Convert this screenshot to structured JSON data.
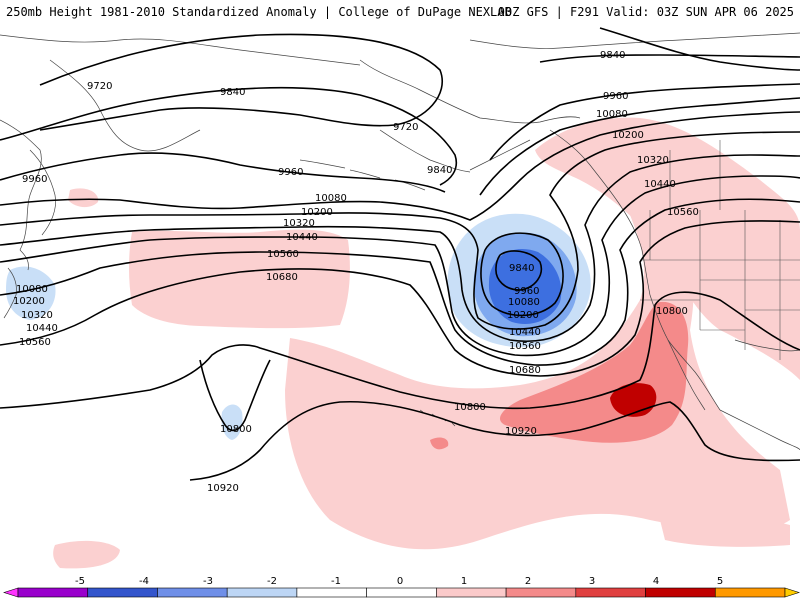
{
  "header": {
    "title_left": "250mb Height 1981-2010 Standardized Anomaly | College of DuPage NEXLAB",
    "title_right": "00Z GFS | F291 Valid: 03Z SUN APR 06 2025"
  },
  "contour_labels": [
    "9720",
    "9840",
    "9960",
    "10080",
    "10200",
    "10320",
    "10440",
    "10560",
    "10680",
    "10800",
    "10920"
  ],
  "placed_labels": [
    {
      "id": "lbl-9720-a",
      "text": "9720"
    },
    {
      "id": "lbl-9840-a",
      "text": "9840"
    },
    {
      "id": "lbl-9720-b",
      "text": "9720"
    },
    {
      "id": "lbl-9840-b",
      "text": "9840"
    },
    {
      "id": "lbl-9960-a",
      "text": "9960"
    },
    {
      "id": "lbl-9960-b",
      "text": "9960"
    },
    {
      "id": "lbl-10080-a",
      "text": "10080"
    },
    {
      "id": "lbl-10200-a",
      "text": "10200"
    },
    {
      "id": "lbl-10320-a",
      "text": "10320"
    },
    {
      "id": "lbl-10440-a",
      "text": "10440"
    },
    {
      "id": "lbl-10560-a",
      "text": "10560"
    },
    {
      "id": "lbl-10680-a",
      "text": "10680"
    },
    {
      "id": "lbl-10080-w",
      "text": "10080"
    },
    {
      "id": "lbl-10200-w",
      "text": "10200"
    },
    {
      "id": "lbl-10320-w",
      "text": "10320"
    },
    {
      "id": "lbl-10440-w",
      "text": "10440"
    },
    {
      "id": "lbl-10560-w",
      "text": "10560"
    },
    {
      "id": "lbl-9840-c",
      "text": "9840"
    },
    {
      "id": "lbl-9960-c",
      "text": "9960"
    },
    {
      "id": "lbl-10080-c",
      "text": "10080"
    },
    {
      "id": "lbl-10200-c",
      "text": "10200"
    },
    {
      "id": "lbl-10440-c",
      "text": "10440"
    },
    {
      "id": "lbl-10560-c",
      "text": "10560"
    },
    {
      "id": "lbl-10680-c",
      "text": "10680"
    },
    {
      "id": "lbl-10800-a",
      "text": "10800"
    },
    {
      "id": "lbl-10800-b",
      "text": "10800"
    },
    {
      "id": "lbl-10800-c",
      "text": "10800"
    },
    {
      "id": "lbl-10920-a",
      "text": "10920"
    },
    {
      "id": "lbl-10920-b",
      "text": "10920"
    },
    {
      "id": "lbl-9840-e",
      "text": "9840"
    },
    {
      "id": "lbl-9960-e",
      "text": "9960"
    },
    {
      "id": "lbl-10080-e",
      "text": "10080"
    },
    {
      "id": "lbl-10200-e",
      "text": "10200"
    },
    {
      "id": "lbl-10320-e",
      "text": "10320"
    },
    {
      "id": "lbl-10440-e",
      "text": "10440"
    },
    {
      "id": "lbl-10560-e",
      "text": "10560"
    }
  ],
  "colorbar": {
    "ticks": [
      "-5",
      "-4",
      "-3",
      "-2",
      "-1",
      "0",
      "1",
      "2",
      "3",
      "4",
      "5"
    ],
    "colors": [
      "#9900cc",
      "#3355cc",
      "#6f8fe8",
      "#bdd6f5",
      "#ffffff",
      "#ffffff",
      "#fbcaca",
      "#f48a8a",
      "#e04040",
      "#c00000",
      "#ff9900"
    ],
    "arrow_left": "#ff33ff",
    "arrow_right": "#ffcc00"
  },
  "shading_colors": {
    "neg1": "#c9dff7",
    "neg2": "#7fa9ef",
    "neg3": "#3d6fe0",
    "pos1": "#fbd0d0",
    "pos2": "#f48a8a",
    "pos3": "#c00000"
  }
}
